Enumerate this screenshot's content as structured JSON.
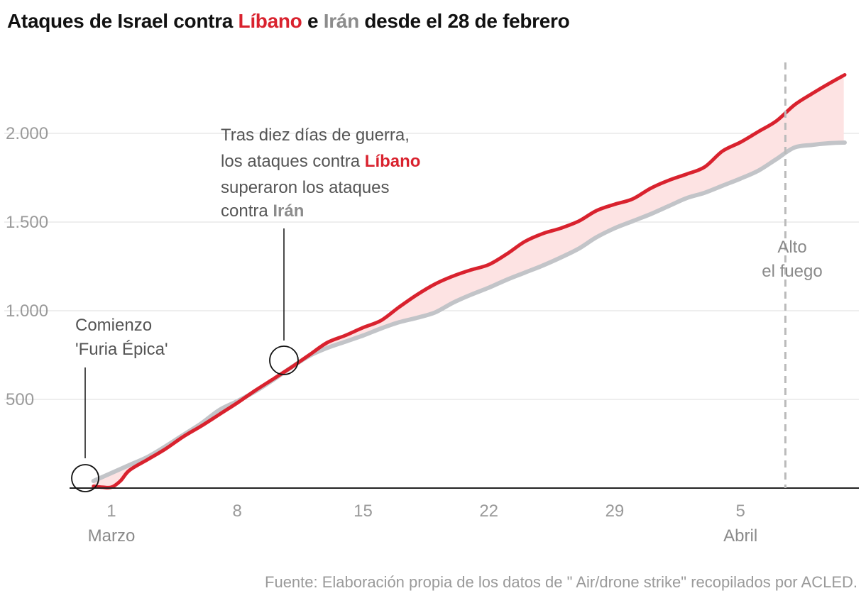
{
  "title": {
    "prefix": "Ataques de Israel contra ",
    "lebanon": "Líbano",
    "middle": " e ",
    "iran": "Irán",
    "suffix": " desde el 28 de febrero"
  },
  "colors": {
    "lebanon": "#d9222e",
    "iran": "#c2c4c8",
    "fill": "#fde3e3",
    "grid": "#dddddd",
    "axis": "#222222",
    "ceasefire": "#bbbbbb"
  },
  "annotations": {
    "start": {
      "line1": "Comienzo",
      "line2": "'Furia Épica'"
    },
    "crossover": {
      "line1": "Tras diez días de guerra,",
      "line2_prefix": "los ataques contra ",
      "line2_highlight": "Líbano",
      "line3": "superaron los ataques",
      "line4_prefix": "contra ",
      "line4_highlight": "Irán"
    },
    "ceasefire": {
      "line1": "Alto",
      "line2": "el fuego"
    }
  },
  "source": "Fuente: Elaboración propia de los datos de \" Air/drone strike\" recopilados por ACLED.",
  "chart_data": {
    "type": "area",
    "title": "Ataques de Israel contra Líbano e Irán desde el 28 de febrero",
    "x_unit": "fecha",
    "x_tick_labels": [
      "1",
      "8",
      "15",
      "22",
      "29",
      "5"
    ],
    "x_tick_days": [
      1,
      8,
      15,
      22,
      29,
      36
    ],
    "month_labels": [
      {
        "label": "Marzo",
        "day": 1
      },
      {
        "label": "Abril",
        "day": 36
      }
    ],
    "y_ticks": [
      500,
      1000,
      1500,
      2000
    ],
    "y_tick_labels": [
      "500",
      "1.000",
      "1.500",
      "2.000"
    ],
    "ylim": [
      0,
      2400
    ],
    "xlim": [
      -0.5,
      41.8
    ],
    "ceasefire_day": 38.5,
    "fill_between": true,
    "series": [
      {
        "name": "Irán",
        "color": "#c2c4c8",
        "points": [
          [
            0,
            40
          ],
          [
            1,
            85
          ],
          [
            2,
            130
          ],
          [
            3,
            175
          ],
          [
            4,
            235
          ],
          [
            5,
            300
          ],
          [
            6,
            365
          ],
          [
            7,
            440
          ],
          [
            8,
            490
          ],
          [
            9,
            545
          ],
          [
            10,
            610
          ],
          [
            11,
            680
          ],
          [
            12,
            745
          ],
          [
            13,
            790
          ],
          [
            14,
            825
          ],
          [
            15,
            860
          ],
          [
            16,
            900
          ],
          [
            17,
            935
          ],
          [
            18,
            960
          ],
          [
            19,
            990
          ],
          [
            20,
            1045
          ],
          [
            21,
            1090
          ],
          [
            22,
            1130
          ],
          [
            23,
            1175
          ],
          [
            24,
            1215
          ],
          [
            25,
            1255
          ],
          [
            26,
            1300
          ],
          [
            27,
            1350
          ],
          [
            28,
            1415
          ],
          [
            29,
            1465
          ],
          [
            30,
            1505
          ],
          [
            31,
            1545
          ],
          [
            32,
            1590
          ],
          [
            33,
            1635
          ],
          [
            34,
            1665
          ],
          [
            35,
            1705
          ],
          [
            36,
            1745
          ],
          [
            37,
            1790
          ],
          [
            38,
            1855
          ],
          [
            39,
            1920
          ],
          [
            40,
            1935
          ],
          [
            41,
            1945
          ],
          [
            41.8,
            1948
          ]
        ]
      },
      {
        "name": "Líbano",
        "color": "#d9222e",
        "points": [
          [
            0,
            10
          ],
          [
            0.5,
            5
          ],
          [
            1,
            5
          ],
          [
            1.5,
            40
          ],
          [
            2,
            100
          ],
          [
            3,
            160
          ],
          [
            4,
            220
          ],
          [
            5,
            290
          ],
          [
            6,
            350
          ],
          [
            7,
            415
          ],
          [
            8,
            480
          ],
          [
            9,
            550
          ],
          [
            10,
            615
          ],
          [
            11,
            680
          ],
          [
            12,
            750
          ],
          [
            13,
            820
          ],
          [
            14,
            860
          ],
          [
            15,
            905
          ],
          [
            16,
            945
          ],
          [
            17,
            1020
          ],
          [
            18,
            1090
          ],
          [
            19,
            1150
          ],
          [
            20,
            1195
          ],
          [
            21,
            1230
          ],
          [
            22,
            1260
          ],
          [
            23,
            1320
          ],
          [
            24,
            1390
          ],
          [
            25,
            1435
          ],
          [
            26,
            1465
          ],
          [
            27,
            1505
          ],
          [
            28,
            1565
          ],
          [
            29,
            1600
          ],
          [
            30,
            1630
          ],
          [
            31,
            1690
          ],
          [
            32,
            1735
          ],
          [
            33,
            1770
          ],
          [
            34,
            1810
          ],
          [
            35,
            1900
          ],
          [
            36,
            1950
          ],
          [
            37,
            2010
          ],
          [
            38,
            2070
          ],
          [
            39,
            2160
          ],
          [
            40,
            2225
          ],
          [
            41,
            2285
          ],
          [
            41.8,
            2330
          ]
        ]
      }
    ]
  }
}
